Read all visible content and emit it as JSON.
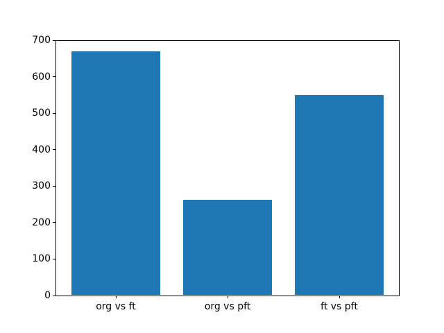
{
  "chart_data": {
    "type": "bar",
    "categories": [
      "org vs ft",
      "org vs pft",
      "ft vs pft"
    ],
    "values": [
      670,
      263,
      550
    ],
    "title": "",
    "xlabel": "",
    "ylabel": "",
    "ylim": [
      0,
      700
    ],
    "yticks": [
      0,
      100,
      200,
      300,
      400,
      500,
      600,
      700
    ],
    "bar_color": "#1f77b4",
    "spine_color": "#000000",
    "text_color": "#000000",
    "background_color": "#ffffff",
    "grid": false,
    "legend": null
  }
}
